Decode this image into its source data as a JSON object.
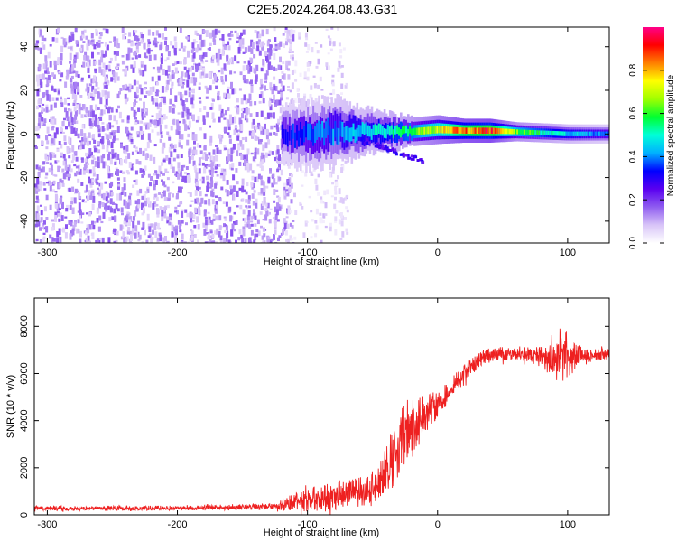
{
  "figure": {
    "title": "C2E5.2024.264.08.43.G31"
  },
  "chart_data": [
    {
      "type": "heatmap",
      "xlabel": "Height of straight line (km)",
      "ylabel": "Frequency (Hz)",
      "xlim": [
        -310,
        132
      ],
      "ylim": [
        -50,
        49
      ],
      "x_ticks": [
        -300,
        -200,
        -100,
        0,
        100
      ],
      "y_ticks": [
        -40,
        -20,
        0,
        20,
        40
      ],
      "noise_region": {
        "x_range": [
          -310,
          -120
        ],
        "y_range": [
          -50,
          49
        ],
        "amplitude": [
          0.05,
          0.18
        ]
      },
      "sparse_region": {
        "x_range": [
          -120,
          -70
        ],
        "amplitude": [
          0.02,
          0.1
        ]
      },
      "signal_band": [
        {
          "x": -120,
          "center": -1,
          "halfwidth": 6,
          "amplitude": 0.35
        },
        {
          "x": -100,
          "center": 0,
          "halfwidth": 7,
          "amplitude": 0.4
        },
        {
          "x": -80,
          "center": 1,
          "halfwidth": 7,
          "amplitude": 0.45
        },
        {
          "x": -60,
          "center": 1,
          "halfwidth": 5,
          "amplitude": 0.5
        },
        {
          "x": -40,
          "center": 1,
          "halfwidth": 4,
          "amplitude": 0.55
        },
        {
          "x": -20,
          "center": 1,
          "halfwidth": 3,
          "amplitude": 0.65
        },
        {
          "x": 0,
          "center": 2,
          "halfwidth": 3,
          "amplitude": 0.8
        },
        {
          "x": 20,
          "center": 1.5,
          "halfwidth": 2.5,
          "amplitude": 0.95
        },
        {
          "x": 40,
          "center": 1.5,
          "halfwidth": 2.5,
          "amplitude": 1.0
        },
        {
          "x": 60,
          "center": 1,
          "halfwidth": 2,
          "amplitude": 0.7
        },
        {
          "x": 80,
          "center": 0.5,
          "halfwidth": 2,
          "amplitude": 0.6
        },
        {
          "x": 100,
          "center": 0,
          "halfwidth": 2,
          "amplitude": 0.5
        },
        {
          "x": 132,
          "center": 0,
          "halfwidth": 2,
          "amplitude": 0.4
        }
      ],
      "colorbar": {
        "label": "Normalized spectral amplitude",
        "range": [
          0,
          1
        ],
        "ticks": [
          "0.0",
          "0.2",
          "0.4",
          "0.6",
          "0.8"
        ],
        "tick_values": [
          0.0,
          0.2,
          0.4,
          0.6,
          0.8
        ],
        "colors": [
          "#ffffff",
          "#d8c4f8",
          "#8f5cf0",
          "#5a00f0",
          "#0000ff",
          "#00b0ff",
          "#00ffd8",
          "#00ff30",
          "#a0ff00",
          "#ffff00",
          "#ff8000",
          "#ff0000",
          "#ff0088"
        ]
      },
      "grid": false
    },
    {
      "type": "line",
      "xlabel": "Height of straight line (km)",
      "ylabel": "SNR (10 * v/v)",
      "xlim": [
        -310,
        132
      ],
      "ylim": [
        0,
        9200
      ],
      "x_ticks": [
        -300,
        -200,
        -100,
        0,
        100
      ],
      "y_ticks": [
        0,
        2000,
        4000,
        6000,
        8000
      ],
      "color": "#ee2020",
      "envelope": [
        {
          "x": -310,
          "base": 280,
          "spread": 150
        },
        {
          "x": -250,
          "base": 280,
          "spread": 150
        },
        {
          "x": -200,
          "base": 290,
          "spread": 160
        },
        {
          "x": -150,
          "base": 330,
          "spread": 180
        },
        {
          "x": -125,
          "base": 350,
          "spread": 200
        },
        {
          "x": -110,
          "base": 500,
          "spread": 700
        },
        {
          "x": -90,
          "base": 700,
          "spread": 900
        },
        {
          "x": -70,
          "base": 850,
          "spread": 900
        },
        {
          "x": -55,
          "base": 1050,
          "spread": 1000
        },
        {
          "x": -45,
          "base": 1400,
          "spread": 1300
        },
        {
          "x": -35,
          "base": 2300,
          "spread": 2000
        },
        {
          "x": -28,
          "base": 3400,
          "spread": 2400
        },
        {
          "x": -20,
          "base": 3800,
          "spread": 2200
        },
        {
          "x": -10,
          "base": 4300,
          "spread": 1400
        },
        {
          "x": 0,
          "base": 4700,
          "spread": 900
        },
        {
          "x": 10,
          "base": 5300,
          "spread": 700
        },
        {
          "x": 20,
          "base": 6000,
          "spread": 600
        },
        {
          "x": 35,
          "base": 6700,
          "spread": 450
        },
        {
          "x": 50,
          "base": 6850,
          "spread": 450
        },
        {
          "x": 70,
          "base": 6800,
          "spread": 500
        },
        {
          "x": 85,
          "base": 6600,
          "spread": 900
        },
        {
          "x": 95,
          "base": 6700,
          "spread": 1900
        },
        {
          "x": 100,
          "base": 6800,
          "spread": 1800
        },
        {
          "x": 105,
          "base": 6700,
          "spread": 900
        },
        {
          "x": 115,
          "base": 6750,
          "spread": 450
        },
        {
          "x": 132,
          "base": 6850,
          "spread": 350
        }
      ],
      "grid": false
    }
  ]
}
